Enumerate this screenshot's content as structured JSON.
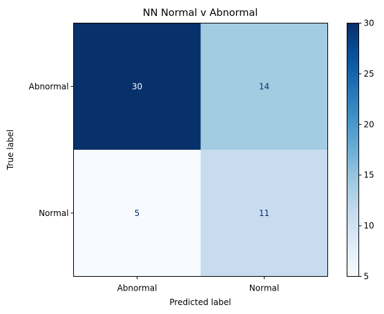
{
  "chart_data": {
    "type": "heatmap",
    "title": "NN Normal v Abnormal",
    "xlabel": "Predicted label",
    "ylabel": "True label",
    "x_categories": [
      "Abnormal",
      "Normal"
    ],
    "y_categories": [
      "Abnormal",
      "Normal"
    ],
    "values": [
      [
        30,
        14
      ],
      [
        5,
        11
      ]
    ],
    "colormap": "Blues",
    "colorbar": {
      "range": [
        5,
        30
      ],
      "ticks": [
        "5",
        "10",
        "15",
        "20",
        "25",
        "30"
      ]
    },
    "grid": false
  }
}
